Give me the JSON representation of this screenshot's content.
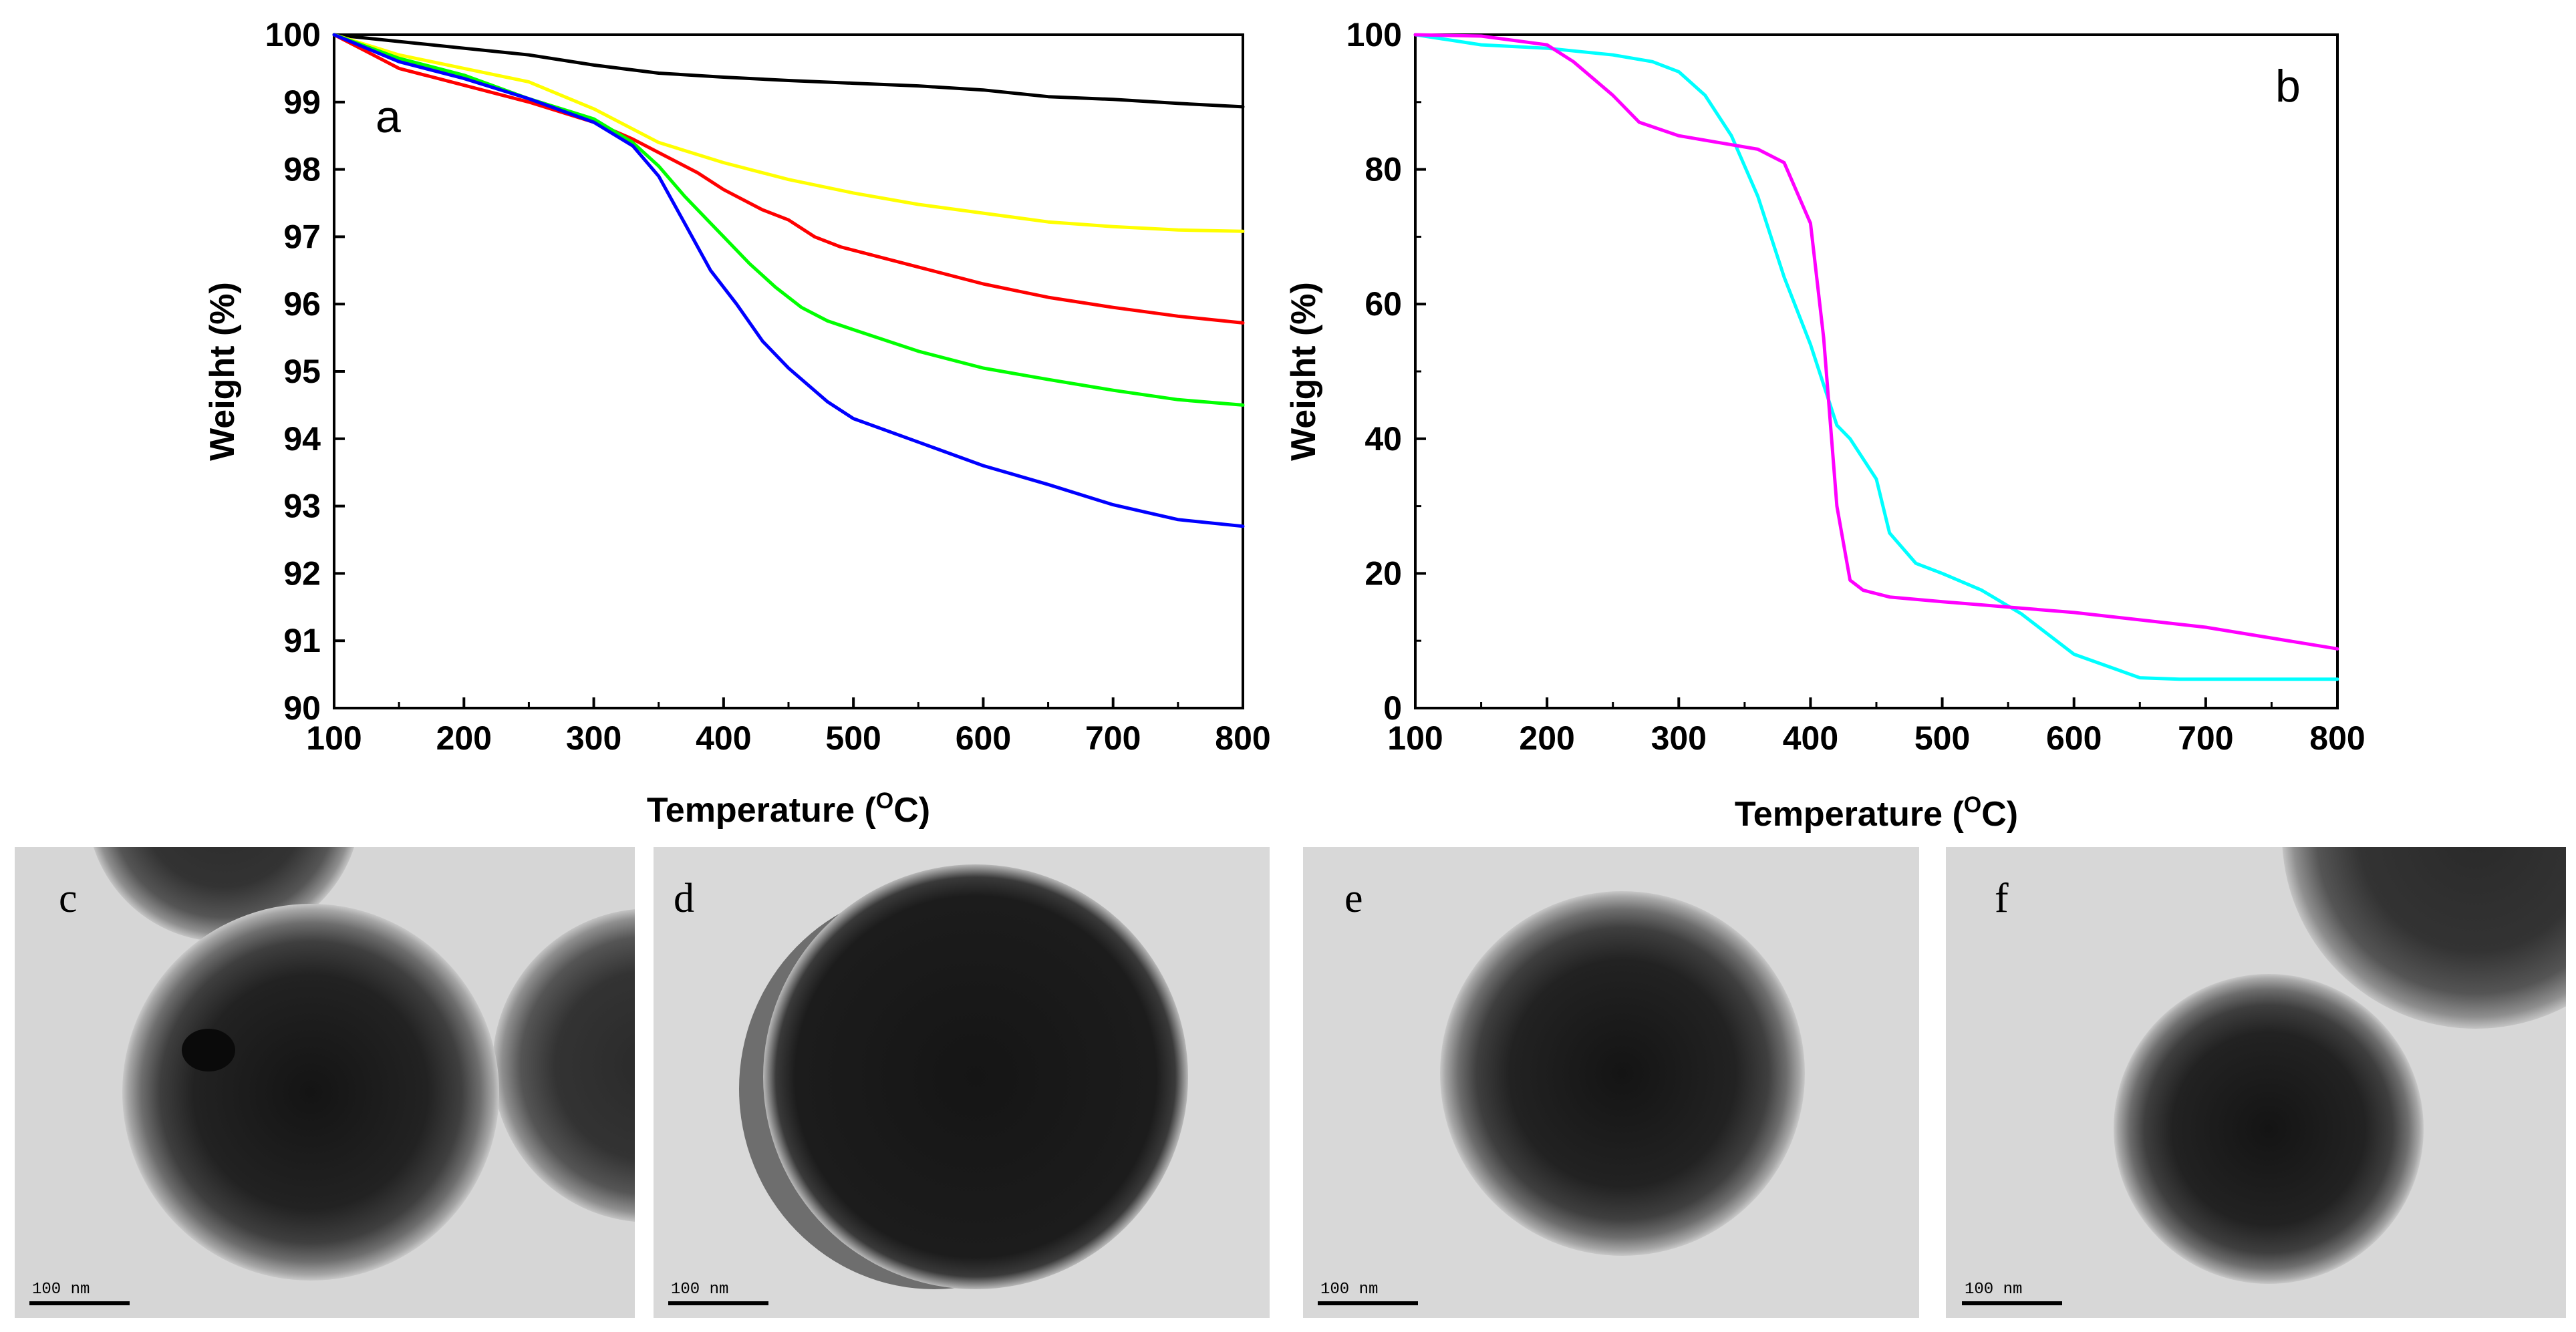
{
  "chart_data": [
    {
      "panel": "a",
      "type": "line",
      "xlabel": "Temperature (",
      "xlabel_sup": "O",
      "xlabel_unit": "C)",
      "ylabel": "Weight (%)",
      "xlim": [
        100,
        800
      ],
      "ylim": [
        90,
        100
      ],
      "xticks": [
        100,
        200,
        300,
        400,
        500,
        600,
        700,
        800
      ],
      "yticks": [
        90,
        91,
        92,
        93,
        94,
        95,
        96,
        97,
        98,
        99,
        100
      ],
      "series": [
        {
          "name": "black",
          "color": "#000000",
          "x": [
            100,
            150,
            200,
            250,
            300,
            350,
            400,
            450,
            500,
            550,
            600,
            650,
            700,
            750,
            800
          ],
          "y": [
            100,
            99.9,
            99.8,
            99.7,
            99.55,
            99.43,
            99.37,
            99.32,
            99.28,
            99.24,
            99.18,
            99.08,
            99.04,
            98.98,
            98.93
          ]
        },
        {
          "name": "yellow",
          "color": "#FFFF00",
          "x": [
            100,
            150,
            200,
            250,
            300,
            350,
            400,
            450,
            500,
            550,
            600,
            650,
            700,
            750,
            800
          ],
          "y": [
            100,
            99.7,
            99.5,
            99.3,
            98.9,
            98.4,
            98.1,
            97.85,
            97.65,
            97.48,
            97.35,
            97.22,
            97.15,
            97.1,
            97.08
          ]
        },
        {
          "name": "red",
          "color": "#FF0000",
          "x": [
            100,
            130,
            150,
            200,
            250,
            300,
            330,
            350,
            380,
            400,
            430,
            450,
            470,
            490,
            500,
            550,
            600,
            650,
            700,
            750,
            800
          ],
          "y": [
            100,
            99.7,
            99.5,
            99.25,
            99.0,
            98.7,
            98.45,
            98.25,
            97.95,
            97.7,
            97.4,
            97.25,
            97.0,
            96.85,
            96.8,
            96.55,
            96.3,
            96.1,
            95.95,
            95.82,
            95.72
          ]
        },
        {
          "name": "green",
          "color": "#00FF00",
          "x": [
            100,
            150,
            200,
            250,
            300,
            330,
            350,
            370,
            390,
            400,
            420,
            440,
            460,
            480,
            500,
            550,
            600,
            650,
            700,
            750,
            800
          ],
          "y": [
            100,
            99.65,
            99.4,
            99.05,
            98.75,
            98.4,
            98.05,
            97.6,
            97.2,
            97.0,
            96.6,
            96.25,
            95.95,
            95.75,
            95.62,
            95.3,
            95.05,
            94.88,
            94.72,
            94.58,
            94.5
          ]
        },
        {
          "name": "blue",
          "color": "#0000FF",
          "x": [
            100,
            150,
            200,
            250,
            300,
            330,
            350,
            370,
            390,
            410,
            430,
            450,
            480,
            500,
            550,
            600,
            650,
            700,
            750,
            800
          ],
          "y": [
            100,
            99.6,
            99.35,
            99.05,
            98.7,
            98.35,
            97.9,
            97.2,
            96.5,
            96.0,
            95.45,
            95.05,
            94.55,
            94.3,
            93.95,
            93.6,
            93.32,
            93.02,
            92.8,
            92.7
          ]
        }
      ],
      "annotations": [
        "a"
      ]
    },
    {
      "panel": "b",
      "type": "line",
      "xlabel": "Temperature (",
      "xlabel_sup": "O",
      "xlabel_unit": "C)",
      "ylabel": "Weight (%)",
      "xlim": [
        100,
        800
      ],
      "ylim": [
        0,
        100
      ],
      "xticks": [
        100,
        200,
        300,
        400,
        500,
        600,
        700,
        800
      ],
      "yticks": [
        0,
        20,
        40,
        60,
        80,
        100
      ],
      "series": [
        {
          "name": "cyan",
          "color": "#00FFFF",
          "x": [
            100,
            150,
            200,
            250,
            280,
            300,
            320,
            340,
            360,
            380,
            400,
            420,
            430,
            450,
            460,
            480,
            500,
            530,
            560,
            600,
            650,
            680,
            700,
            800
          ],
          "y": [
            100,
            98.5,
            98,
            97,
            96,
            94.5,
            91,
            85,
            76,
            64,
            54,
            42,
            40,
            34,
            26,
            21.5,
            20,
            17.5,
            14,
            8,
            4.5,
            4.3,
            4.3,
            4.3
          ]
        },
        {
          "name": "magenta",
          "color": "#FF00FF",
          "x": [
            100,
            150,
            200,
            220,
            250,
            270,
            300,
            330,
            360,
            380,
            400,
            410,
            420,
            430,
            440,
            460,
            500,
            600,
            700,
            800
          ],
          "y": [
            100,
            99.8,
            98.5,
            96,
            91,
            87,
            85,
            84,
            83,
            81,
            72,
            55,
            30,
            19,
            17.5,
            16.5,
            15.8,
            14.2,
            12,
            8.8
          ]
        }
      ],
      "annotations": [
        "b"
      ]
    }
  ],
  "tem_panels": [
    {
      "letter": "c",
      "scale_label": "100 nm"
    },
    {
      "letter": "d",
      "scale_label": "100 nm"
    },
    {
      "letter": "e",
      "scale_label": "100 nm"
    },
    {
      "letter": "f",
      "scale_label": "100 nm"
    }
  ]
}
